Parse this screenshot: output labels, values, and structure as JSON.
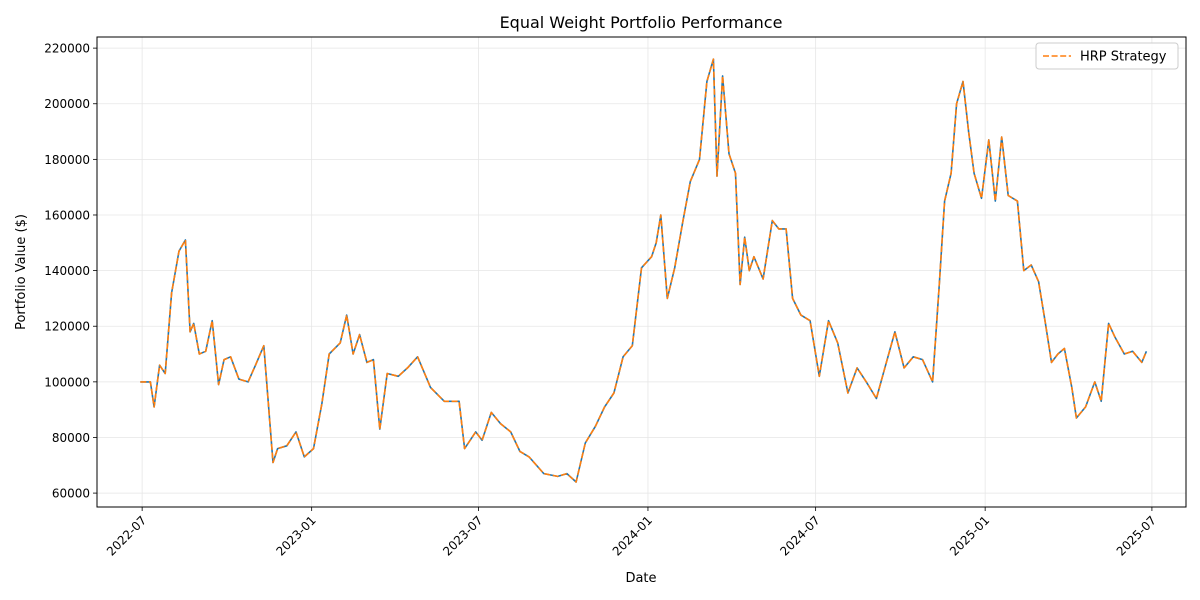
{
  "chart_data": {
    "type": "line",
    "title": "Equal Weight Portfolio Performance",
    "xlabel": "Date",
    "ylabel": "Portfolio Value ($)",
    "xlim": [
      "2022-05-13",
      "2025-08-07"
    ],
    "ylim": [
      55000,
      224000
    ],
    "x_ticks": [
      "2022-07",
      "2023-01",
      "2023-07",
      "2024-01",
      "2024-07",
      "2025-01",
      "2025-07"
    ],
    "y_ticks": [
      60000,
      80000,
      100000,
      120000,
      140000,
      160000,
      180000,
      200000,
      220000
    ],
    "grid": true,
    "legend_position": "top-right",
    "colors": {
      "blue": "#1f77b4",
      "orange": "#ff7f0e"
    },
    "series": [
      {
        "name": "",
        "color": "#1f77b4",
        "style": "solid",
        "x": [
          "2022-06-29",
          "2022-07-10",
          "2022-07-14",
          "2022-07-20",
          "2022-07-26",
          "2022-08-02",
          "2022-08-10",
          "2022-08-17",
          "2022-08-22",
          "2022-08-26",
          "2022-09-01",
          "2022-09-08",
          "2022-09-15",
          "2022-09-22",
          "2022-09-28",
          "2022-10-05",
          "2022-10-14",
          "2022-10-24",
          "2022-11-01",
          "2022-11-10",
          "2022-11-20",
          "2022-11-25",
          "2022-12-05",
          "2022-12-15",
          "2022-12-24",
          "2023-01-03",
          "2023-01-12",
          "2023-01-20",
          "2023-02-01",
          "2023-02-08",
          "2023-02-15",
          "2023-02-22",
          "2023-03-02",
          "2023-03-09",
          "2023-03-16",
          "2023-03-24",
          "2023-04-05",
          "2023-04-15",
          "2023-04-26",
          "2023-05-10",
          "2023-05-25",
          "2023-06-10",
          "2023-06-16",
          "2023-06-28",
          "2023-07-05",
          "2023-07-15",
          "2023-07-25",
          "2023-08-05",
          "2023-08-15",
          "2023-08-25",
          "2023-09-10",
          "2023-09-25",
          "2023-10-05",
          "2023-10-15",
          "2023-10-25",
          "2023-11-05",
          "2023-11-15",
          "2023-11-25",
          "2023-12-05",
          "2023-12-15",
          "2023-12-25",
          "2024-01-05",
          "2024-01-10",
          "2024-01-15",
          "2024-01-22",
          "2024-01-30",
          "2024-02-08",
          "2024-02-16",
          "2024-02-26",
          "2024-03-05",
          "2024-03-12",
          "2024-03-16",
          "2024-03-22",
          "2024-03-29",
          "2024-04-05",
          "2024-04-10",
          "2024-04-15",
          "2024-04-20",
          "2024-04-25",
          "2024-05-05",
          "2024-05-15",
          "2024-05-22",
          "2024-05-30",
          "2024-06-06",
          "2024-06-15",
          "2024-06-25",
          "2024-07-05",
          "2024-07-15",
          "2024-07-25",
          "2024-08-05",
          "2024-08-15",
          "2024-08-25",
          "2024-09-05",
          "2024-09-15",
          "2024-09-25",
          "2024-10-05",
          "2024-10-15",
          "2024-10-25",
          "2024-11-05",
          "2024-11-12",
          "2024-11-18",
          "2024-11-25",
          "2024-12-01",
          "2024-12-08",
          "2024-12-14",
          "2024-12-20",
          "2024-12-28",
          "2025-01-05",
          "2025-01-12",
          "2025-01-19",
          "2025-01-26",
          "2025-02-05",
          "2025-02-12",
          "2025-02-20",
          "2025-02-28",
          "2025-03-07",
          "2025-03-14",
          "2025-03-21",
          "2025-03-28",
          "2025-04-05",
          "2025-04-10",
          "2025-04-20",
          "2025-04-30",
          "2025-05-07",
          "2025-05-15",
          "2025-05-22",
          "2025-06-01",
          "2025-06-10",
          "2025-06-20",
          "2025-06-25"
        ],
        "values": [
          100000,
          100000,
          91000,
          106000,
          103000,
          132000,
          147000,
          151000,
          118000,
          121000,
          110000,
          111000,
          122000,
          99000,
          108000,
          109000,
          101000,
          100000,
          106000,
          113000,
          71000,
          76000,
          77000,
          82000,
          73000,
          76000,
          92000,
          110000,
          114000,
          124000,
          110000,
          117000,
          107000,
          108000,
          83000,
          103000,
          102000,
          105000,
          109000,
          98000,
          93000,
          93000,
          76000,
          82000,
          79000,
          89000,
          85000,
          82000,
          75000,
          73000,
          67000,
          66000,
          67000,
          64000,
          78000,
          84000,
          91000,
          96000,
          109000,
          113000,
          141000,
          145000,
          150000,
          160000,
          130000,
          141000,
          158000,
          172000,
          180000,
          208000,
          216000,
          174000,
          210000,
          182000,
          175000,
          135000,
          152000,
          140000,
          145000,
          137000,
          158000,
          155000,
          155000,
          130000,
          124000,
          122000,
          102000,
          122000,
          114000,
          96000,
          105000,
          100000,
          94000,
          106000,
          118000,
          105000,
          109000,
          108000,
          100000,
          134000,
          165000,
          175000,
          200000,
          208000,
          190000,
          175000,
          166000,
          187000,
          165000,
          188000,
          167000,
          165000,
          140000,
          142000,
          136000,
          122000,
          107000,
          110000,
          112000,
          98000,
          87000,
          91000,
          100000,
          93000,
          121000,
          116000,
          110000,
          111000,
          107000,
          111000
        ]
      },
      {
        "name": "HRP Strategy",
        "color": "#ff7f0e",
        "style": "dashed",
        "x": [
          "2022-06-29",
          "2022-07-10",
          "2022-07-14",
          "2022-07-20",
          "2022-07-26",
          "2022-08-02",
          "2022-08-10",
          "2022-08-17",
          "2022-08-22",
          "2022-08-26",
          "2022-09-01",
          "2022-09-08",
          "2022-09-15",
          "2022-09-22",
          "2022-09-28",
          "2022-10-05",
          "2022-10-14",
          "2022-10-24",
          "2022-11-01",
          "2022-11-10",
          "2022-11-20",
          "2022-11-25",
          "2022-12-05",
          "2022-12-15",
          "2022-12-24",
          "2023-01-03",
          "2023-01-12",
          "2023-01-20",
          "2023-02-01",
          "2023-02-08",
          "2023-02-15",
          "2023-02-22",
          "2023-03-02",
          "2023-03-09",
          "2023-03-16",
          "2023-03-24",
          "2023-04-05",
          "2023-04-15",
          "2023-04-26",
          "2023-05-10",
          "2023-05-25",
          "2023-06-10",
          "2023-06-16",
          "2023-06-28",
          "2023-07-05",
          "2023-07-15",
          "2023-07-25",
          "2023-08-05",
          "2023-08-15",
          "2023-08-25",
          "2023-09-10",
          "2023-09-25",
          "2023-10-05",
          "2023-10-15",
          "2023-10-25",
          "2023-11-05",
          "2023-11-15",
          "2023-11-25",
          "2023-12-05",
          "2023-12-15",
          "2023-12-25",
          "2024-01-05",
          "2024-01-10",
          "2024-01-15",
          "2024-01-22",
          "2024-01-30",
          "2024-02-08",
          "2024-02-16",
          "2024-02-26",
          "2024-03-05",
          "2024-03-12",
          "2024-03-16",
          "2024-03-22",
          "2024-03-29",
          "2024-04-05",
          "2024-04-10",
          "2024-04-15",
          "2024-04-20",
          "2024-04-25",
          "2024-05-05",
          "2024-05-15",
          "2024-05-22",
          "2024-05-30",
          "2024-06-06",
          "2024-06-15",
          "2024-06-25",
          "2024-07-05",
          "2024-07-15",
          "2024-07-25",
          "2024-08-05",
          "2024-08-15",
          "2024-08-25",
          "2024-09-05",
          "2024-09-15",
          "2024-09-25",
          "2024-10-05",
          "2024-10-15",
          "2024-10-25",
          "2024-11-05",
          "2024-11-12",
          "2024-11-18",
          "2024-11-25",
          "2024-12-01",
          "2024-12-08",
          "2024-12-14",
          "2024-12-20",
          "2024-12-28",
          "2025-01-05",
          "2025-01-12",
          "2025-01-19",
          "2025-01-26",
          "2025-02-05",
          "2025-02-12",
          "2025-02-20",
          "2025-02-28",
          "2025-03-07",
          "2025-03-14",
          "2025-03-21",
          "2025-03-28",
          "2025-04-05",
          "2025-04-10",
          "2025-04-20",
          "2025-04-30",
          "2025-05-07",
          "2025-05-15",
          "2025-05-22",
          "2025-06-01",
          "2025-06-10",
          "2025-06-20",
          "2025-06-25"
        ],
        "values": [
          100000,
          100000,
          91000,
          106000,
          103000,
          132000,
          147000,
          151000,
          118000,
          121000,
          110000,
          111000,
          122000,
          99000,
          108000,
          109000,
          101000,
          100000,
          106000,
          113000,
          71000,
          76000,
          77000,
          82000,
          73000,
          76000,
          92000,
          110000,
          114000,
          124000,
          110000,
          117000,
          107000,
          108000,
          83000,
          103000,
          102000,
          105000,
          109000,
          98000,
          93000,
          93000,
          76000,
          82000,
          79000,
          89000,
          85000,
          82000,
          75000,
          73000,
          67000,
          66000,
          67000,
          64000,
          78000,
          84000,
          91000,
          96000,
          109000,
          113000,
          141000,
          145000,
          150000,
          160000,
          130000,
          141000,
          158000,
          172000,
          180000,
          208000,
          216000,
          174000,
          210000,
          182000,
          175000,
          135000,
          152000,
          140000,
          145000,
          137000,
          158000,
          155000,
          155000,
          130000,
          124000,
          122000,
          102000,
          122000,
          114000,
          96000,
          105000,
          100000,
          94000,
          106000,
          118000,
          105000,
          109000,
          108000,
          100000,
          134000,
          165000,
          175000,
          200000,
          208000,
          190000,
          175000,
          166000,
          187000,
          165000,
          188000,
          167000,
          165000,
          140000,
          142000,
          136000,
          122000,
          107000,
          110000,
          112000,
          98000,
          87000,
          91000,
          100000,
          93000,
          121000,
          116000,
          110000,
          111000,
          107000,
          111000
        ]
      }
    ]
  }
}
